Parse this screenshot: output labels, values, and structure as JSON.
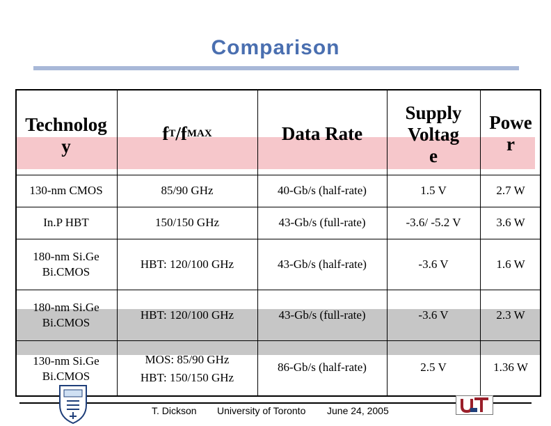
{
  "slide": {
    "title": "Comparison"
  },
  "table": {
    "headers": {
      "technology_l1": "Technolog",
      "technology_l2": "y",
      "ft_f": "f",
      "ft_sub": "T",
      "ft_slash": "/f",
      "fmax_sub": "MAX",
      "data_rate": "Data Rate",
      "supply_l1": "Supply",
      "supply_l2": "Voltag",
      "supply_l3": "e",
      "power_l1": "Powe",
      "power_l2": "r"
    },
    "rows": [
      {
        "tech": "130-nm CMOS",
        "ft": "85/90 GHz",
        "rate": "40-Gb/s (half-rate)",
        "supply": "1.5 V",
        "power": "2.7 W"
      },
      {
        "tech": "In.P HBT",
        "ft": "150/150 GHz",
        "rate": "43-Gb/s (full-rate)",
        "supply": "-3.6/ -5.2 V",
        "power": "3.6 W"
      },
      {
        "tech_l1": "180-nm Si.Ge",
        "tech_l2": "Bi.CMOS",
        "ft": "HBT: 120/100 GHz",
        "rate": "43-Gb/s (half-rate)",
        "supply": "-3.6 V",
        "power": "1.6 W"
      },
      {
        "tech_l1": "180-nm Si.Ge",
        "tech_l2": "Bi.CMOS",
        "ft": "HBT: 120/100 GHz",
        "rate": "43-Gb/s (full-rate)",
        "supply": "-3.6 V",
        "power": "2.3 W"
      },
      {
        "tech_l1": "130-nm Si.Ge",
        "tech_l2": "Bi.CMOS",
        "ft_l1": "MOS: 85/90 GHz",
        "ft_l2": "HBT: 150/150 GHz",
        "rate": "86-Gb/s (half-rate)",
        "supply": "2.5 V",
        "power": "1.36 W"
      }
    ]
  },
  "footer": {
    "author": "T. Dickson",
    "institution": "University of Toronto",
    "date": "June 24, 2005",
    "logo_text": "U of T"
  },
  "colors": {
    "title": "#4a6fb0",
    "title_rule": "#a8b8d8",
    "header_band": "#f6c7cb",
    "highlight_band": "#c6c6c6",
    "logo": "#9a1f2a"
  }
}
